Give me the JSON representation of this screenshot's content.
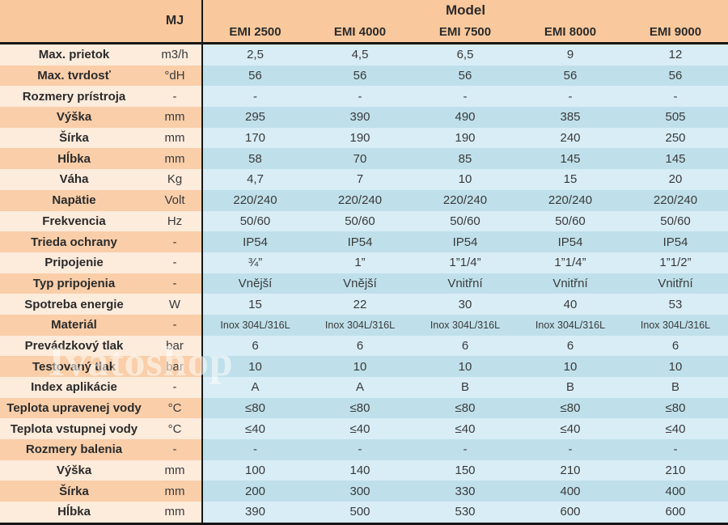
{
  "watermark": "Ivatoshop",
  "colors": {
    "header_peach": "#f9c89c",
    "peach_light": "#fdebdc",
    "peach_dark": "#f9cea9",
    "blue_light": "#d8edf6",
    "blue_dark": "#bfe0eb",
    "border_line": "#171717"
  },
  "chart_data": {
    "type": "table",
    "title": "Model",
    "unit_column_label": "MJ",
    "columns": [
      "EMI 2500",
      "EMI 4000",
      "EMI 7500",
      "EMI 8000",
      "EMI 9000"
    ],
    "rows": [
      {
        "label": "Max. prietok",
        "unit": "m3/h",
        "values": [
          "2,5",
          "4,5",
          "6,5",
          "9",
          "12"
        ]
      },
      {
        "label": "Max. tvrdosť",
        "unit": "°dH",
        "values": [
          "56",
          "56",
          "56",
          "56",
          "56"
        ]
      },
      {
        "label": "Rozmery prístroja",
        "unit": "-",
        "values": [
          "-",
          "-",
          "-",
          "-",
          "-"
        ]
      },
      {
        "label": "Výška",
        "unit": "mm",
        "values": [
          "295",
          "390",
          "490",
          "385",
          "505"
        ]
      },
      {
        "label": "Šírka",
        "unit": "mm",
        "values": [
          "170",
          "190",
          "190",
          "240",
          "250"
        ]
      },
      {
        "label": "Hĺbka",
        "unit": "mm",
        "values": [
          "58",
          "70",
          "85",
          "145",
          "145"
        ]
      },
      {
        "label": "Váha",
        "unit": "Kg",
        "values": [
          "4,7",
          "7",
          "10",
          "15",
          "20"
        ]
      },
      {
        "label": "Napätie",
        "unit": "Volt",
        "values": [
          "220/240",
          "220/240",
          "220/240",
          "220/240",
          "220/240"
        ]
      },
      {
        "label": "Frekvencia",
        "unit": "Hz",
        "values": [
          "50/60",
          "50/60",
          "50/60",
          "50/60",
          "50/60"
        ]
      },
      {
        "label": "Trieda ochrany",
        "unit": "-",
        "values": [
          "IP54",
          "IP54",
          "IP54",
          "IP54",
          "IP54"
        ]
      },
      {
        "label": "Pripojenie",
        "unit": "-",
        "values": [
          "¾”",
          "1”",
          "1”1/4”",
          "1”1/4”",
          "1”1/2”"
        ]
      },
      {
        "label": "Typ pripojenia",
        "unit": "-",
        "values": [
          "Vnější",
          "Vnější",
          "Vnitřní",
          "Vnitřní",
          "Vnitřní"
        ]
      },
      {
        "label": "Spotreba energie",
        "unit": "W",
        "values": [
          "15",
          "22",
          "30",
          "40",
          "53"
        ]
      },
      {
        "label": "Materiál",
        "unit": "-",
        "values": [
          "Inox 304L/316L",
          "Inox 304L/316L",
          "Inox 304L/316L",
          "Inox 304L/316L",
          "Inox 304L/316L"
        ]
      },
      {
        "label": "Prevádzkový tlak",
        "unit": "bar",
        "values": [
          "6",
          "6",
          "6",
          "6",
          "6"
        ]
      },
      {
        "label": "Testovaný tlak",
        "unit": "bar",
        "values": [
          "10",
          "10",
          "10",
          "10",
          "10"
        ]
      },
      {
        "label": "Index aplikácie",
        "unit": "-",
        "values": [
          "A",
          "A",
          "B",
          "B",
          "B"
        ]
      },
      {
        "label": "Teplota upravenej vody",
        "unit": "°C",
        "values": [
          "≤80",
          "≤80",
          "≤80",
          "≤80",
          "≤80"
        ]
      },
      {
        "label": "Teplota vstupnej vody",
        "unit": "°C",
        "values": [
          "≤40",
          "≤40",
          "≤40",
          "≤40",
          "≤40"
        ]
      },
      {
        "label": "Rozmery balenia",
        "unit": "-",
        "values": [
          "-",
          "-",
          "-",
          "-",
          "-"
        ]
      },
      {
        "label": "Výška",
        "unit": "mm",
        "values": [
          "100",
          "140",
          "150",
          "210",
          "210"
        ]
      },
      {
        "label": "Šírka",
        "unit": "mm",
        "values": [
          "200",
          "300",
          "330",
          "400",
          "400"
        ]
      },
      {
        "label": "Hĺbka",
        "unit": "mm",
        "values": [
          "390",
          "500",
          "530",
          "600",
          "600"
        ]
      }
    ]
  }
}
